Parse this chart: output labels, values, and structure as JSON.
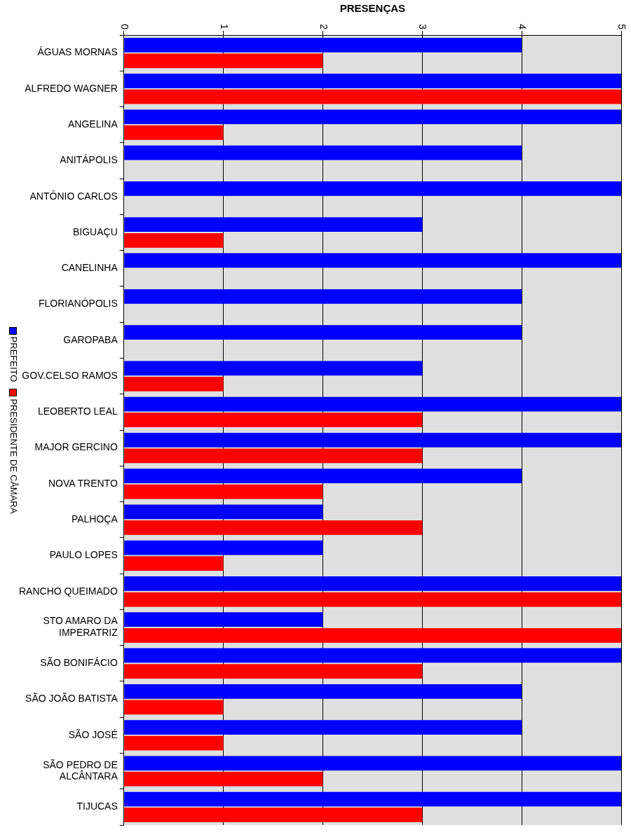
{
  "chart_data": {
    "type": "bar",
    "orientation": "horizontal",
    "xlabel": "PRESENÇAS",
    "categories": [
      "ÁGUAS MORNAS",
      "ALFREDO WAGNER",
      "ANGELINA",
      "ANITÁPOLIS",
      "ANTÔNIO CARLOS",
      "BIGUAÇU",
      "CANELINHA",
      "FLORIANÓPOLIS",
      "GAROPABA",
      "GOV.CELSO RAMOS",
      "LEOBERTO LEAL",
      "MAJOR GERCINO",
      "NOVA TRENTO",
      "PALHOÇA",
      "PAULO LOPES",
      "RANCHO QUEIMADO",
      "STO AMARO DA\nIMPERATRIZ",
      "SÃO BONIFÁCIO",
      "SÃO JOÃO BATISTA",
      "SÃO JOSÉ",
      "SÃO PEDRO DE\nALCÂNTARA",
      "TIJUCAS"
    ],
    "series": [
      {
        "name": "PREFEITO",
        "color": "#0000ff",
        "values": [
          4,
          5,
          5,
          4,
          5,
          3,
          5,
          4,
          4,
          3,
          5,
          5,
          4,
          2,
          2,
          5,
          2,
          5,
          4,
          4,
          5,
          5
        ]
      },
      {
        "name": "PRESIDENTE DE CÂMARA",
        "color": "#ff0000",
        "values": [
          2,
          5,
          1,
          0,
          0,
          1,
          0,
          0,
          0,
          1,
          3,
          3,
          2,
          3,
          1,
          5,
          5,
          3,
          1,
          1,
          2,
          3
        ]
      }
    ],
    "xlim": [
      0,
      5
    ],
    "xticks": [
      0,
      1,
      2,
      3,
      4,
      5
    ],
    "grid": "x",
    "legend": "left"
  }
}
